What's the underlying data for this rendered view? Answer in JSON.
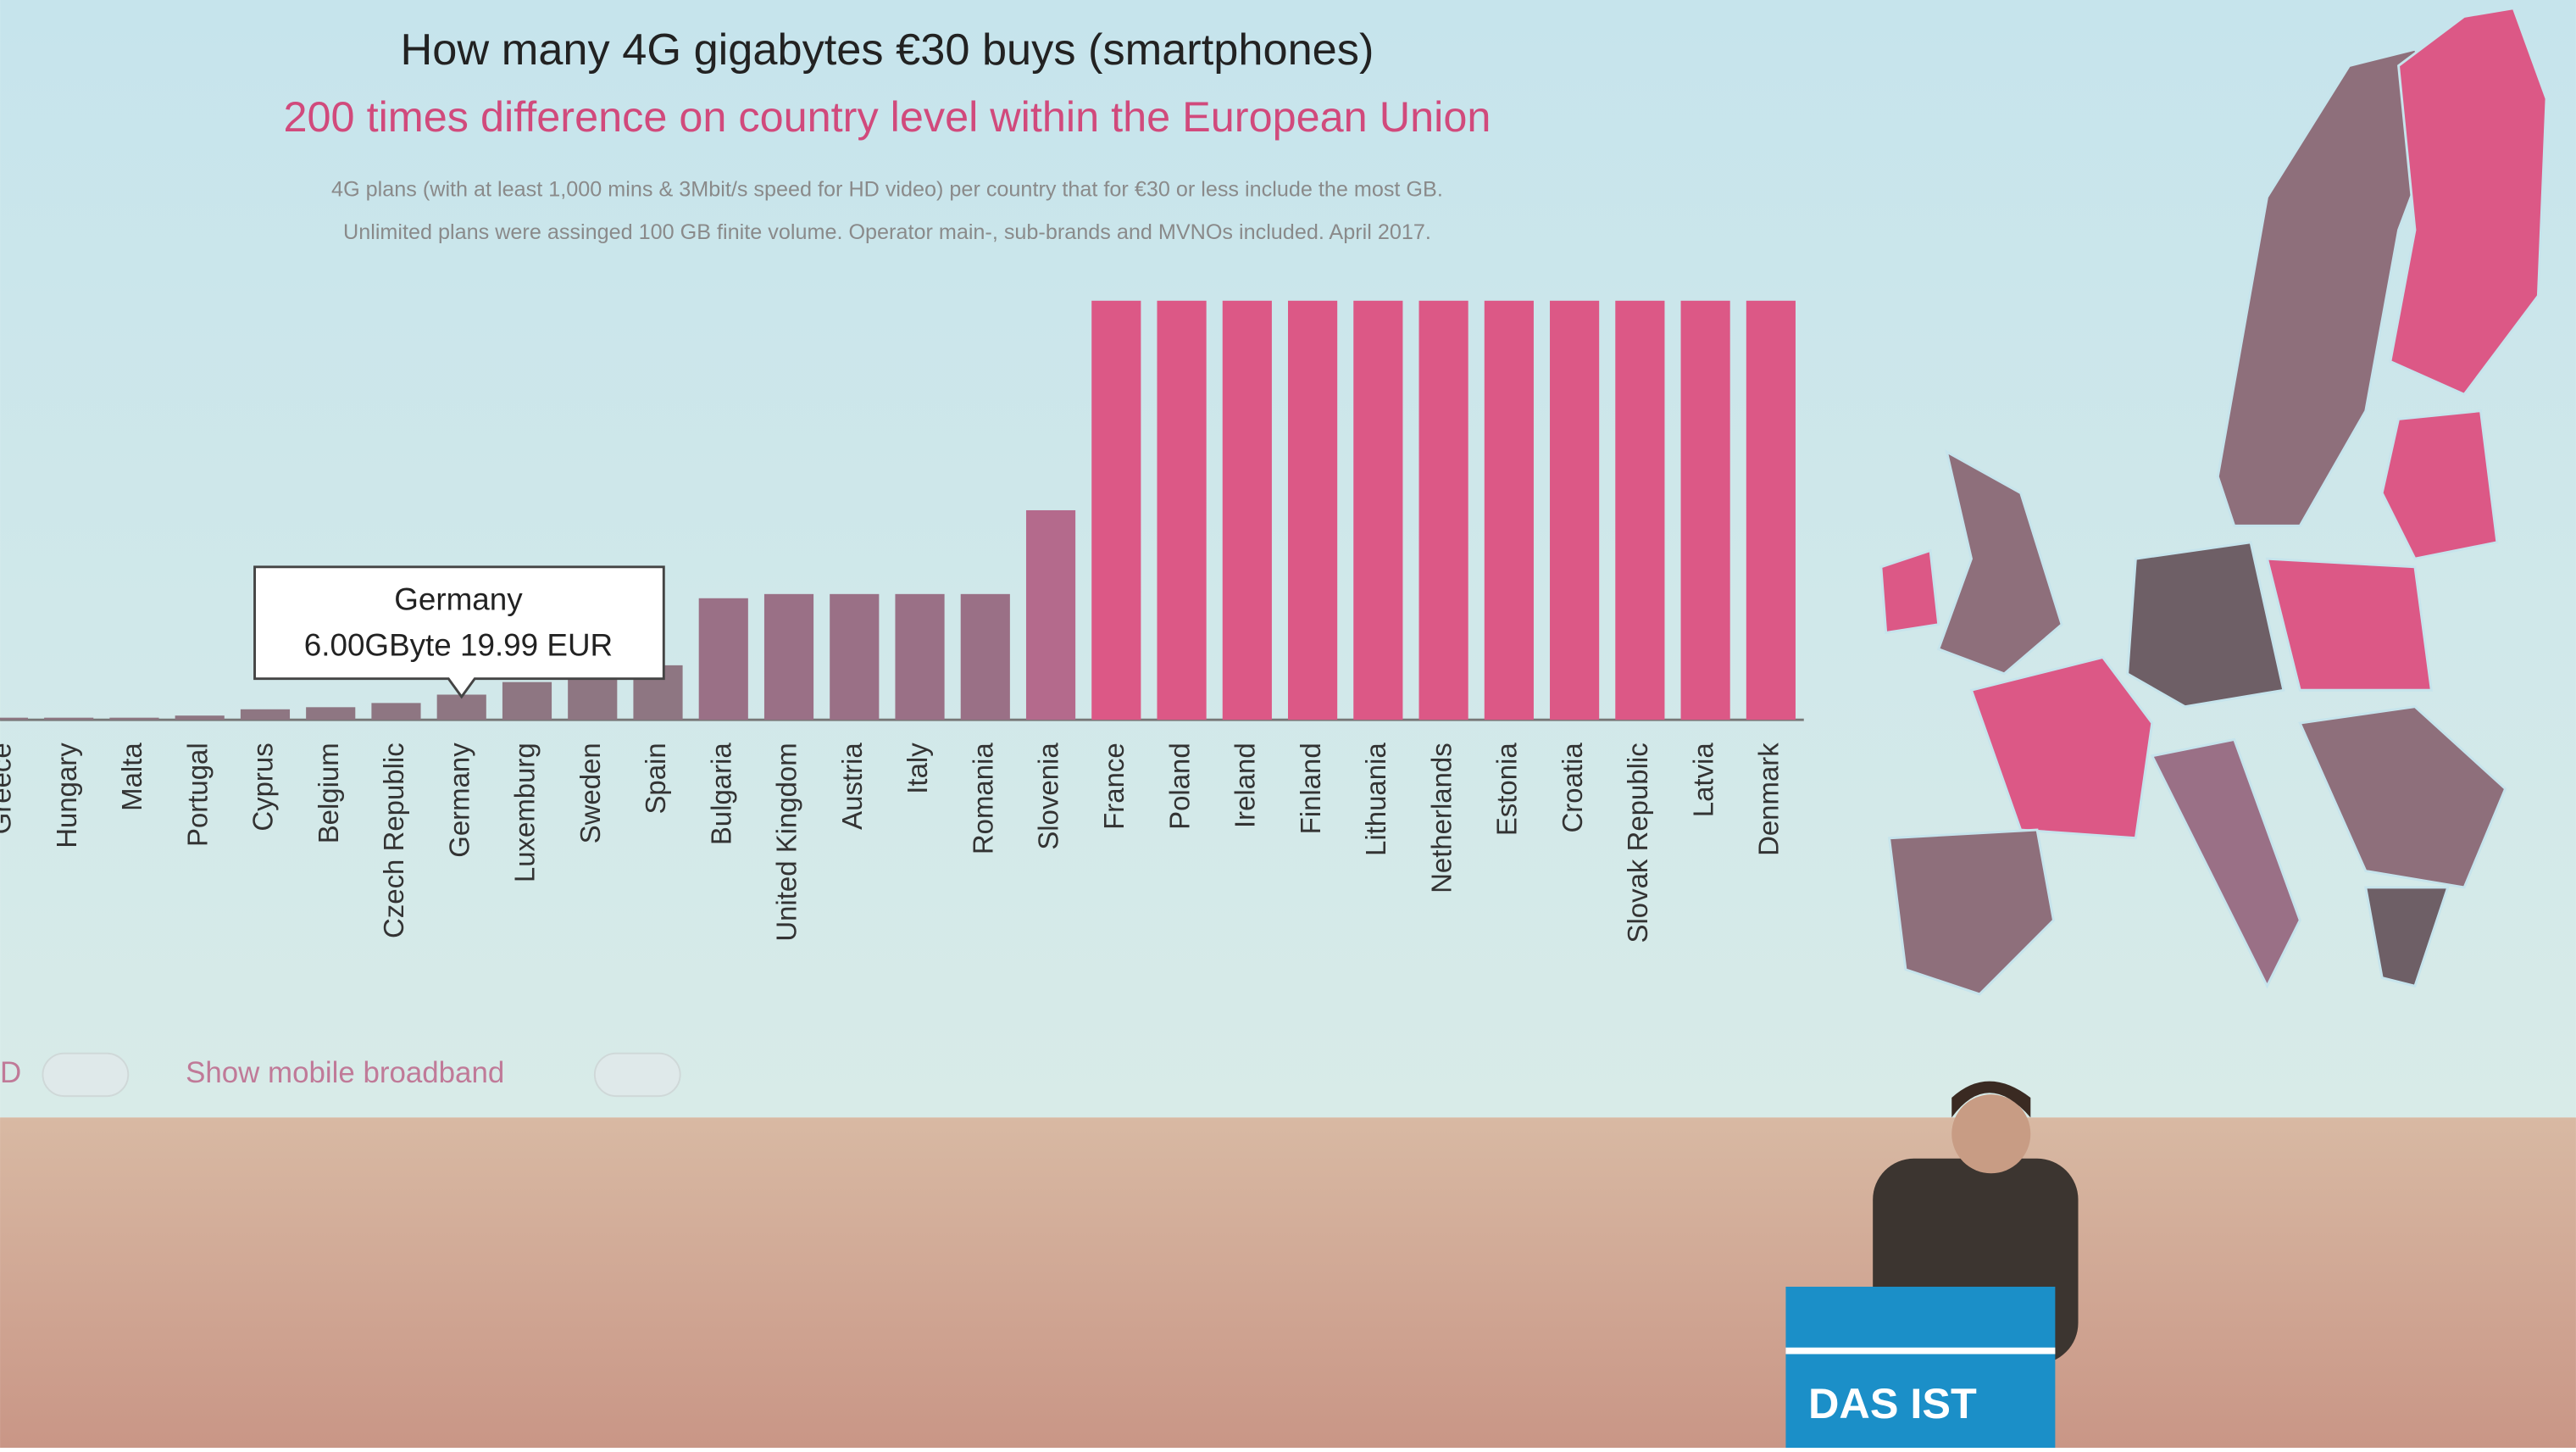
{
  "chart_data": {
    "type": "bar",
    "title": "How many 4G gigabytes €30 buys (smartphones)",
    "subtitle": "200 times difference on country level within the European Union",
    "notes": [
      "4G plans (with at least 1,000 mins & 3Mbit/s speed for HD video) per country that for €30 or less include the most GB.",
      "Unlimited plans were assinged 100 GB finite volume. Operator main-, sub-brands and MVNOs included. April 2017."
    ],
    "categories": [
      "Greece",
      "Hungary",
      "Malta",
      "Portugal",
      "Cyprus",
      "Belgium",
      "Czech Republic",
      "Germany",
      "Luxemburg",
      "Sweden",
      "Spain",
      "Bulgaria",
      "United Kingdom",
      "Austria",
      "Italy",
      "Romania",
      "Slovenia",
      "France",
      "Poland",
      "Ireland",
      "Finland",
      "Lithuania",
      "Netherlands",
      "Estonia",
      "Croatia",
      "Slovak Republic",
      "Latvia",
      "Denmark"
    ],
    "values": [
      0.5,
      0.5,
      0.5,
      1,
      2.5,
      3,
      4,
      6,
      9,
      10,
      13,
      29,
      30,
      30,
      30,
      30,
      50,
      100,
      100,
      100,
      100,
      100,
      100,
      100,
      100,
      100,
      100,
      100
    ],
    "colors": [
      "#8e7682",
      "#8e7682",
      "#8e7682",
      "#8e7682",
      "#8e7682",
      "#8e7682",
      "#8e7682",
      "#8e7682",
      "#8e7682",
      "#8e7682",
      "#8e7682",
      "#9a7086",
      "#9a7086",
      "#9a7086",
      "#9a7086",
      "#9a7086",
      "#b46a8c",
      "#dc5886",
      "#dc5886",
      "#dc5886",
      "#dc5886",
      "#dc5886",
      "#dc5886",
      "#dc5886",
      "#dc5886",
      "#dc5886",
      "#dc5886",
      "#dc5886"
    ],
    "ylim": [
      0,
      100
    ],
    "tooltip": {
      "category": "Germany",
      "text": "6.00GByte 19.99 EUR"
    },
    "toggles": [
      "D",
      "Show mobile broadband"
    ]
  },
  "stage": {
    "podium_text": "DAS IST"
  }
}
